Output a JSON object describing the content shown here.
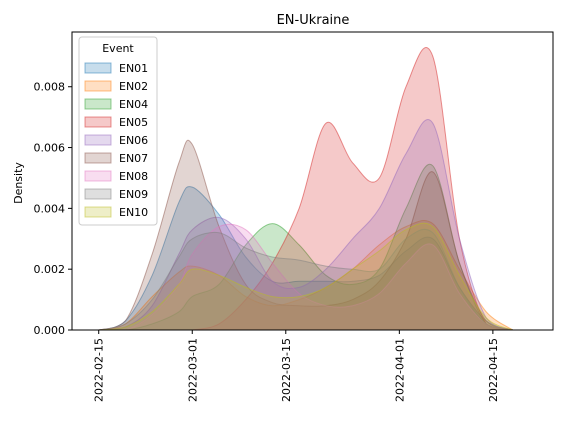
{
  "chart_data": {
    "type": "area",
    "kind": "kernel-density",
    "title": "EN-Ukraine",
    "xlabel": "",
    "ylabel": "Density",
    "xlim": [
      "2022-02-11",
      "2022-04-24"
    ],
    "ylim": [
      0,
      0.0098
    ],
    "x_ticks": [
      "2022-02-15",
      "2022-03-01",
      "2022-03-15",
      "2022-04-01",
      "2022-04-15"
    ],
    "y_ticks": [
      "0.000",
      "0.002",
      "0.004",
      "0.006",
      "0.008"
    ],
    "grid": false,
    "legend": {
      "title": "Event",
      "placement": "top-left"
    },
    "x": [
      "2022-02-15",
      "2022-02-19",
      "2022-02-23",
      "2022-02-27",
      "2022-03-01",
      "2022-03-05",
      "2022-03-09",
      "2022-03-13",
      "2022-03-17",
      "2022-03-21",
      "2022-03-25",
      "2022-03-29",
      "2022-04-02",
      "2022-04-06",
      "2022-04-10",
      "2022-04-14",
      "2022-04-18"
    ],
    "series": [
      {
        "name": "EN01",
        "color": "#1f77b4",
        "values": [
          0,
          0.0003,
          0.0018,
          0.0042,
          0.0047,
          0.0038,
          0.0024,
          0.0016,
          0.0016,
          0.0016,
          0.0016,
          0.0018,
          0.0026,
          0.003,
          0.0014,
          0.0003,
          0
        ]
      },
      {
        "name": "EN02",
        "color": "#ff7f0e",
        "values": [
          0,
          0.0002,
          0.0011,
          0.0019,
          0.0021,
          0.0018,
          0.0011,
          0.0008,
          0.001,
          0.0014,
          0.002,
          0.0028,
          0.0034,
          0.0035,
          0.002,
          0.0006,
          0
        ]
      },
      {
        "name": "EN04",
        "color": "#2ca02c",
        "values": [
          0,
          0,
          0.0002,
          0.0006,
          0.0011,
          0.0015,
          0.0028,
          0.0035,
          0.0028,
          0.0018,
          0.0015,
          0.002,
          0.004,
          0.0054,
          0.0022,
          0.0002,
          0
        ]
      },
      {
        "name": "EN05",
        "color": "#d62728",
        "values": [
          0,
          0,
          0,
          0,
          0,
          0.0002,
          0.001,
          0.0022,
          0.004,
          0.0068,
          0.0055,
          0.005,
          0.008,
          0.009,
          0.003,
          0.0002,
          0
        ]
      },
      {
        "name": "EN06",
        "color": "#9467bd",
        "values": [
          0,
          0.0001,
          0.0008,
          0.0025,
          0.0033,
          0.0037,
          0.003,
          0.0016,
          0.0014,
          0.002,
          0.003,
          0.004,
          0.0058,
          0.0068,
          0.003,
          0.0004,
          0
        ]
      },
      {
        "name": "EN07",
        "color": "#8c564b",
        "values": [
          0,
          0.0003,
          0.0025,
          0.0055,
          0.0061,
          0.0034,
          0.0015,
          0.0009,
          0.0008,
          0.0008,
          0.001,
          0.0016,
          0.003,
          0.0052,
          0.0022,
          0.0003,
          0
        ]
      },
      {
        "name": "EN08",
        "color": "#e377c2",
        "values": [
          0,
          0,
          0.0005,
          0.0015,
          0.0025,
          0.0034,
          0.0033,
          0.0022,
          0.0012,
          0.0008,
          0.0008,
          0.0012,
          0.0022,
          0.0028,
          0.0012,
          0.0002,
          0
        ]
      },
      {
        "name": "EN09",
        "color": "#7f7f7f",
        "values": [
          0,
          0.0002,
          0.001,
          0.0024,
          0.003,
          0.0032,
          0.0027,
          0.0024,
          0.0023,
          0.0021,
          0.002,
          0.002,
          0.003,
          0.0032,
          0.0014,
          0.0002,
          0
        ]
      },
      {
        "name": "EN10",
        "color": "#bcbd22",
        "values": [
          0,
          0.0001,
          0.0006,
          0.0015,
          0.002,
          0.0018,
          0.0014,
          0.0011,
          0.0011,
          0.0014,
          0.002,
          0.0026,
          0.0033,
          0.0034,
          0.0018,
          0.0004,
          0
        ]
      }
    ]
  }
}
